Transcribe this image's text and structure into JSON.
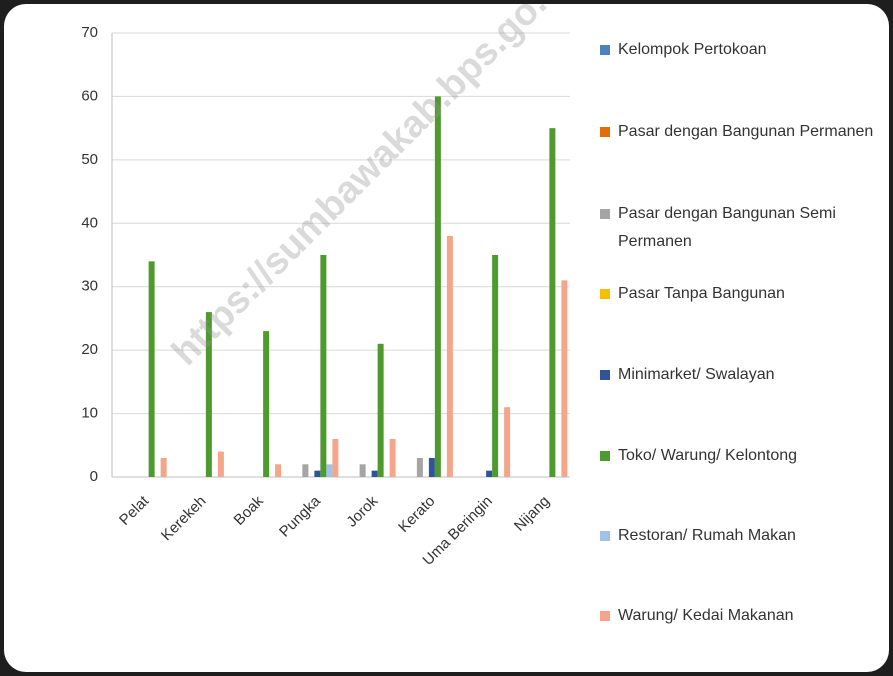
{
  "chart_data": {
    "type": "bar",
    "categories": [
      "Pelat",
      "Kerekeh",
      "Boak",
      "Pungka",
      "Jorok",
      "Kerato",
      "Uma Beringin",
      "Nijang"
    ],
    "series": [
      {
        "name": "Kelompok Pertokoan",
        "color": "#4f81bd",
        "values": [
          0,
          0,
          0,
          0,
          0,
          0,
          0,
          0
        ]
      },
      {
        "name": "Pasar dengan Bangunan Permanen",
        "color": "#e46c0a",
        "values": [
          0,
          0,
          0,
          0,
          0,
          0,
          0,
          0
        ]
      },
      {
        "name": "Pasar dengan Bangunan Semi Permanen",
        "color": "#a5a5a5",
        "values": [
          0,
          0,
          0,
          2,
          2,
          3,
          0,
          0
        ]
      },
      {
        "name": "Pasar Tanpa Bangunan",
        "color": "#f5c000",
        "values": [
          0,
          0,
          0,
          0,
          0,
          0,
          0,
          0
        ]
      },
      {
        "name": "Minimarket/ Swalayan",
        "color": "#2f5597",
        "values": [
          0,
          0,
          0,
          1,
          1,
          3,
          1,
          0
        ]
      },
      {
        "name": "Toko/ Warung/ Kelontong",
        "color": "#4e9a2f",
        "values": [
          34,
          26,
          23,
          35,
          21,
          60,
          35,
          55
        ]
      },
      {
        "name": "Restoran/ Rumah Makan",
        "color": "#9dc3e6",
        "values": [
          0,
          0,
          0,
          2,
          0,
          0,
          0,
          0
        ]
      },
      {
        "name": "Warung/ Kedai Makanan",
        "color": "#f4a58a",
        "values": [
          3,
          4,
          2,
          6,
          6,
          38,
          11,
          31
        ]
      }
    ],
    "ylim": [
      0,
      70
    ],
    "yticks": [
      0,
      10,
      20,
      30,
      40,
      50,
      60,
      70
    ],
    "grid": true,
    "legend": "right",
    "watermark": "https://sumbawakab.bps.go.id"
  }
}
